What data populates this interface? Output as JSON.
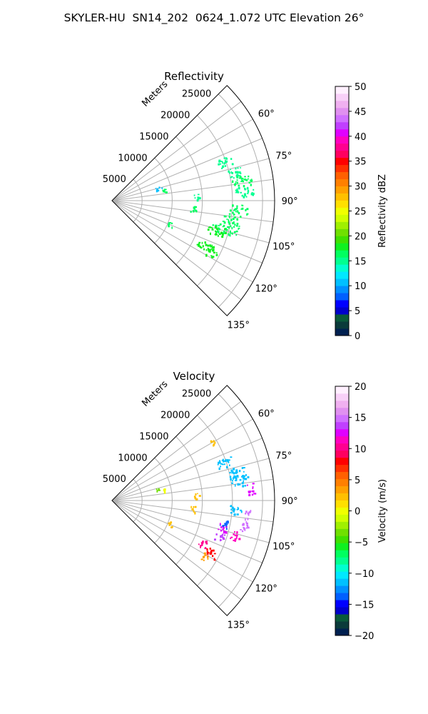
{
  "figure_title": "SKYLER-HU  SN14_202  0624_1.072 UTC Elevation 26°",
  "colors": {
    "grid": "#b0b0b0",
    "frame": "#000000",
    "background": "#ffffff"
  },
  "chart_data": [
    {
      "type": "polar-sector",
      "title": "Reflectivity",
      "range_label": "Meters",
      "range_ticks": [
        5000,
        10000,
        15000,
        20000,
        25000
      ],
      "range_tick_labels": [
        "5000",
        "10000",
        "15000",
        "20000",
        "25000"
      ],
      "rmax": 27000,
      "azimuth_range_deg": [
        45,
        135
      ],
      "azimuth_ticks": [
        60,
        75,
        90,
        105,
        120,
        135
      ],
      "azimuth_tick_labels": [
        "60°",
        "75°",
        "90°",
        "105°",
        "120°",
        "135°"
      ],
      "grid": true,
      "colorbar": {
        "label": "Reflectivity dBZ",
        "min": 0,
        "max": 50,
        "ticks": [
          0,
          5,
          10,
          15,
          20,
          25,
          30,
          35,
          40,
          45,
          50
        ],
        "tick_labels": [
          "0",
          "5",
          "10",
          "15",
          "20",
          "25",
          "30",
          "35",
          "40",
          "45",
          "50"
        ],
        "colors": [
          "#002050",
          "#0a3a3a",
          "#0a5a3a",
          "#0000cc",
          "#0000ff",
          "#0060ff",
          "#0090ff",
          "#00c0ff",
          "#00e8ff",
          "#00ffd0",
          "#00ff90",
          "#00ff60",
          "#10f020",
          "#40e000",
          "#70e000",
          "#a0f000",
          "#d0ff00",
          "#f0ff00",
          "#ffe000",
          "#ffc000",
          "#ffa000",
          "#ff8000",
          "#ff6000",
          "#ff3000",
          "#ff0000",
          "#ff0060",
          "#ff0090",
          "#ff00c0",
          "#e000ff",
          "#c040ff",
          "#d070ff",
          "#e090f0",
          "#f0b0f0",
          "#f8d0f8",
          "#fff0ff"
        ]
      },
      "echoes": [
        {
          "az": 71,
          "r0": 18500,
          "r1": 21000,
          "value": 15
        },
        {
          "az": 77,
          "r0": 19800,
          "r1": 22500,
          "value": 15
        },
        {
          "az": 81,
          "r0": 20000,
          "r1": 23500,
          "value": 16
        },
        {
          "az": 86,
          "r0": 20500,
          "r1": 23800,
          "value": 15
        },
        {
          "az": 94,
          "r0": 19500,
          "r1": 22500,
          "value": 16
        },
        {
          "az": 99,
          "r0": 18500,
          "r1": 21500,
          "value": 17
        },
        {
          "az": 104,
          "r0": 17000,
          "r1": 21500,
          "value": 17
        },
        {
          "az": 106,
          "r0": 16500,
          "r1": 19500,
          "value": 18
        },
        {
          "az": 116,
          "r0": 15500,
          "r1": 18500,
          "value": 18
        },
        {
          "az": 118,
          "r0": 17500,
          "r1": 19500,
          "value": 18
        },
        {
          "az": 96,
          "r0": 13000,
          "r1": 14000,
          "value": 16
        },
        {
          "az": 87,
          "r0": 13500,
          "r1": 14500,
          "value": 15
        },
        {
          "az": 75,
          "r0": 7500,
          "r1": 8500,
          "value": 10
        },
        {
          "az": 79,
          "r0": 8500,
          "r1": 9000,
          "value": 16
        },
        {
          "az": 112,
          "r0": 10000,
          "r1": 10800,
          "value": 17
        }
      ]
    },
    {
      "type": "polar-sector",
      "title": "Velocity",
      "range_label": "Meters",
      "range_ticks": [
        5000,
        10000,
        15000,
        20000,
        25000
      ],
      "range_tick_labels": [
        "5000",
        "10000",
        "15000",
        "20000",
        "25000"
      ],
      "rmax": 27000,
      "azimuth_range_deg": [
        45,
        135
      ],
      "azimuth_ticks": [
        60,
        75,
        90,
        105,
        120,
        135
      ],
      "azimuth_tick_labels": [
        "60°",
        "75°",
        "90°",
        "105°",
        "120°",
        "135°"
      ],
      "grid": true,
      "colorbar": {
        "label": "Velocity (m/s)",
        "min": -20,
        "max": 20,
        "ticks": [
          -20,
          -15,
          -10,
          -5,
          0,
          5,
          10,
          15,
          20
        ],
        "tick_labels": [
          "−20",
          "−15",
          "−10",
          "−5",
          "0",
          "5",
          "10",
          "15",
          "20"
        ],
        "colors": [
          "#002050",
          "#0a3a3a",
          "#0a5a3a",
          "#0000cc",
          "#0000ff",
          "#0060ff",
          "#0090ff",
          "#00c0ff",
          "#00e8ff",
          "#00ffd0",
          "#00ff90",
          "#00ff60",
          "#10f020",
          "#40e000",
          "#70e000",
          "#a0f000",
          "#d0ff00",
          "#f0ff00",
          "#ffe000",
          "#ffc000",
          "#ffa000",
          "#ff8000",
          "#ff6000",
          "#ff3000",
          "#ff0000",
          "#ff0060",
          "#ff0090",
          "#ff00c0",
          "#e000ff",
          "#c040ff",
          "#d070ff",
          "#e090f0",
          "#f0b0f0",
          "#f8d0f8",
          "#fff0ff"
        ]
      },
      "echoes": [
        {
          "az": 71,
          "r0": 18500,
          "r1": 21000,
          "value": -11
        },
        {
          "az": 77,
          "r0": 19800,
          "r1": 22500,
          "value": -11
        },
        {
          "az": 81,
          "r0": 20000,
          "r1": 23000,
          "value": -11
        },
        {
          "az": 85,
          "r0": 22500,
          "r1": 24000,
          "value": 13
        },
        {
          "az": 94,
          "r0": 19500,
          "r1": 21500,
          "value": -12
        },
        {
          "az": 96,
          "r0": 22000,
          "r1": 23000,
          "value": 15
        },
        {
          "az": 101,
          "r0": 21500,
          "r1": 23000,
          "value": 15
        },
        {
          "az": 102,
          "r0": 18000,
          "r1": 19500,
          "value": -14
        },
        {
          "az": 104,
          "r0": 18000,
          "r1": 19500,
          "value": 13
        },
        {
          "az": 106,
          "r0": 20500,
          "r1": 22000,
          "value": 11
        },
        {
          "az": 109,
          "r0": 18000,
          "r1": 19500,
          "value": 14
        },
        {
          "az": 115,
          "r0": 16000,
          "r1": 17500,
          "value": 10
        },
        {
          "az": 118,
          "r0": 17500,
          "r1": 19500,
          "value": 8
        },
        {
          "az": 121,
          "r0": 17500,
          "r1": 18500,
          "value": 3
        },
        {
          "az": 96,
          "r0": 13000,
          "r1": 14000,
          "value": 2
        },
        {
          "az": 87,
          "r0": 13500,
          "r1": 14500,
          "value": 2
        },
        {
          "az": 75,
          "r0": 7500,
          "r1": 8000,
          "value": -4
        },
        {
          "az": 79,
          "r0": 8500,
          "r1": 9000,
          "value": 0
        },
        {
          "az": 112,
          "r0": 10000,
          "r1": 10800,
          "value": 2
        },
        {
          "az": 60,
          "r0": 19000,
          "r1": 19600,
          "value": 2
        }
      ]
    }
  ]
}
